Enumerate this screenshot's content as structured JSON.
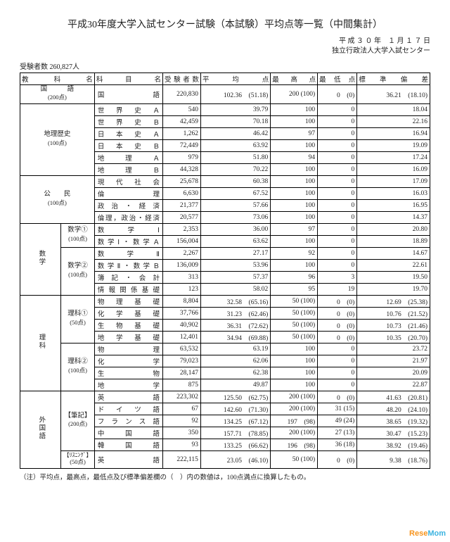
{
  "title": "平成30年度大学入試センター試験（本試験）平均点等一覧（中間集計）",
  "date_line1": "平 成 ３ ０ 年　１ 月 １ ７ 日",
  "date_line2": "独立行政法人大学入試センター",
  "examinees_label": "受験者数 260,827人",
  "headers": {
    "subject": "教　科　名",
    "item": "科　　目　　名",
    "examinees": "受験者数",
    "avg": "平　　均　　点",
    "max": "最 高 点",
    "min": "最低点",
    "sd": "標　準　偏　差"
  },
  "subjects": {
    "kokugo": {
      "name": "国　　　語",
      "pts": "(200点)"
    },
    "chireki": {
      "name": "地理歴史",
      "pts": "(100点)"
    },
    "koumin": {
      "name": "公　　民",
      "pts": "(100点)"
    },
    "suugaku": {
      "name": "数学"
    },
    "rika": {
      "name": "理科"
    },
    "gaikokugo": {
      "name": "外国語"
    }
  },
  "groups": {
    "su1": {
      "name": "数学①",
      "pts": "(100点)"
    },
    "su2": {
      "name": "数学②",
      "pts": "(100点)"
    },
    "ri1": {
      "name": "理科①",
      "pts": "(50点)"
    },
    "ri2": {
      "name": "理科②",
      "pts": "(100点)"
    },
    "hikki": {
      "name": "【筆記】",
      "pts": "(200点)"
    },
    "listen": {
      "name": "【ﾘｽﾆﾝｸﾞ】",
      "pts": "(50点)"
    }
  },
  "rows": {
    "r0": {
      "item": "国語",
      "num": "220,830",
      "avg": "102.36　(51.18)",
      "max": "200 (100)",
      "min": "0　(0)",
      "sd": "36.21　(18.10)"
    },
    "r1": {
      "item": "世界史Ａ",
      "num": "540",
      "avg": "39.79",
      "max": "100",
      "min": "0",
      "sd": "18.04"
    },
    "r2": {
      "item": "世界史Ｂ",
      "num": "42,459",
      "avg": "70.18",
      "max": "100",
      "min": "0",
      "sd": "22.16"
    },
    "r3": {
      "item": "日本史Ａ",
      "num": "1,262",
      "avg": "46.42",
      "max": "97",
      "min": "0",
      "sd": "16.94"
    },
    "r4": {
      "item": "日本史Ｂ",
      "num": "72,449",
      "avg": "63.92",
      "max": "100",
      "min": "0",
      "sd": "19.09"
    },
    "r5": {
      "item": "地理Ａ",
      "num": "979",
      "avg": "51.80",
      "max": "94",
      "min": "0",
      "sd": "17.24"
    },
    "r6": {
      "item": "地理Ｂ",
      "num": "44,328",
      "avg": "70.22",
      "max": "100",
      "min": "0",
      "sd": "16.09"
    },
    "r7": {
      "item": "現代社会",
      "num": "25,678",
      "avg": "60.38",
      "max": "100",
      "min": "0",
      "sd": "17.09"
    },
    "r8": {
      "item": "倫理",
      "num": "6,630",
      "avg": "67.52",
      "max": "100",
      "min": "0",
      "sd": "16.03"
    },
    "r9": {
      "item": "政治・経済",
      "num": "21,377",
      "avg": "57.66",
      "max": "100",
      "min": "0",
      "sd": "16.95"
    },
    "r10": {
      "item": "倫理，政治・経済",
      "num": "20,577",
      "avg": "73.06",
      "max": "100",
      "min": "0",
      "sd": "14.37"
    },
    "r11": {
      "item": "数学Ⅰ",
      "num": "2,353",
      "avg": "36.00",
      "max": "97",
      "min": "0",
      "sd": "20.80"
    },
    "r12": {
      "item": "数学Ⅰ・数学Ａ",
      "num": "156,004",
      "avg": "63.62",
      "max": "100",
      "min": "0",
      "sd": "18.89"
    },
    "r13": {
      "item": "数学Ⅱ",
      "num": "2,267",
      "avg": "27.17",
      "max": "92",
      "min": "0",
      "sd": "14.67"
    },
    "r14": {
      "item": "数学Ⅱ・数学Ｂ",
      "num": "136,009",
      "avg": "53.96",
      "max": "100",
      "min": "0",
      "sd": "22.61"
    },
    "r15": {
      "item": "簿記・会計",
      "num": "313",
      "avg": "57.37",
      "max": "96",
      "min": "3",
      "sd": "19.50"
    },
    "r16": {
      "item": "情報関係基礎",
      "num": "123",
      "avg": "58.02",
      "max": "95",
      "min": "19",
      "sd": "19.70"
    },
    "r17": {
      "item": "物理基礎",
      "num": "8,804",
      "avg": "32.58　(65.16)",
      "max": "50 (100)",
      "min": "0　(0)",
      "sd": "12.69　(25.38)"
    },
    "r18": {
      "item": "化学基礎",
      "num": "37,766",
      "avg": "31.23　(62.46)",
      "max": "50 (100)",
      "min": "0　(0)",
      "sd": "10.76　(21.52)"
    },
    "r19": {
      "item": "生物基礎",
      "num": "40,902",
      "avg": "36.31　(72.62)",
      "max": "50 (100)",
      "min": "0　(0)",
      "sd": "10.73　(21.46)"
    },
    "r20": {
      "item": "地学基礎",
      "num": "12,401",
      "avg": "34.94　(69.88)",
      "max": "50 (100)",
      "min": "0　(0)",
      "sd": "10.35　(20.70)"
    },
    "r21": {
      "item": "物理",
      "num": "63,532",
      "avg": "63.19",
      "max": "100",
      "min": "0",
      "sd": "23.72"
    },
    "r22": {
      "item": "化学",
      "num": "79,023",
      "avg": "62.06",
      "max": "100",
      "min": "0",
      "sd": "21.97"
    },
    "r23": {
      "item": "生物",
      "num": "28,147",
      "avg": "62.38",
      "max": "100",
      "min": "0",
      "sd": "20.09"
    },
    "r24": {
      "item": "地学",
      "num": "875",
      "avg": "49.87",
      "max": "100",
      "min": "0",
      "sd": "22.87"
    },
    "r25": {
      "item": "英語",
      "num": "223,302",
      "avg": "125.50　(62.75)",
      "max": "200 (100)",
      "min": "0　(0)",
      "sd": "41.63　(20.81)"
    },
    "r26": {
      "item": "ドイツ語",
      "num": "67",
      "avg": "142.60　(71.30)",
      "max": "200 (100)",
      "min": "31 (15)",
      "sd": "48.20　(24.10)"
    },
    "r27": {
      "item": "フランス語",
      "num": "92",
      "avg": "134.25　(67.12)",
      "max": "197　(98)",
      "min": "49 (24)",
      "sd": "38.65　(19.32)"
    },
    "r28": {
      "item": "中国語",
      "num": "350",
      "avg": "157.71　(78.85)",
      "max": "200 (100)",
      "min": "27 (13)",
      "sd": "30.47　(15.23)"
    },
    "r29": {
      "item": "韓国語",
      "num": "93",
      "avg": "133.25　(66.62)",
      "max": "196　(98)",
      "min": "36 (18)",
      "sd": "38.92　(19.46)"
    },
    "r30": {
      "item": "英語",
      "num": "222,115",
      "avg": "23.05　(46.10)",
      "max": "50 (100)",
      "min": "0　(0)",
      "sd": "9.38　(18.76)"
    }
  },
  "note": "（注）平均点，最高点，最低点及び標準偏差欄の（　）内の数値は，100点満点に換算したもの。",
  "watermark": {
    "r": "Rese",
    "m": "Mom"
  }
}
